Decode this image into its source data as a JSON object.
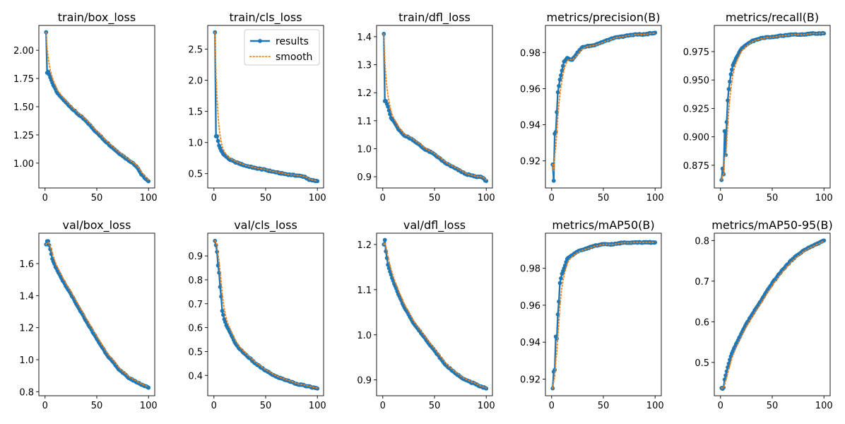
{
  "colors": {
    "results": "#1f77b4",
    "smooth": "#ff7f0e"
  },
  "legend": {
    "results_label": "results",
    "smooth_label": "smooth",
    "position": "top-right of train/cls_loss panel"
  },
  "chart_data": [
    {
      "type": "line",
      "title": "train/box_loss",
      "x_ticks": [
        0,
        50,
        100
      ],
      "y_ticks": [
        1.0,
        1.25,
        1.5,
        1.75,
        2.0
      ],
      "y_tick_labels": [
        "1.00",
        "1.25",
        "1.50",
        "1.75",
        "2.00"
      ],
      "xlim": [
        -6,
        106
      ],
      "ylim": [
        0.78,
        2.22
      ],
      "keypoints": [
        [
          1,
          2.16
        ],
        [
          2,
          1.8
        ],
        [
          3,
          1.81
        ],
        [
          5,
          1.76
        ],
        [
          8,
          1.69
        ],
        [
          12,
          1.62
        ],
        [
          15,
          1.59
        ],
        [
          20,
          1.54
        ],
        [
          30,
          1.45
        ],
        [
          40,
          1.37
        ],
        [
          50,
          1.27
        ],
        [
          60,
          1.18
        ],
        [
          70,
          1.1
        ],
        [
          80,
          1.03
        ],
        [
          85,
          1.0
        ],
        [
          90,
          0.95
        ],
        [
          93,
          0.9
        ],
        [
          100,
          0.84
        ]
      ],
      "legend": false
    },
    {
      "type": "line",
      "title": "train/cls_loss",
      "x_ticks": [
        0,
        50,
        100
      ],
      "y_ticks": [
        0.5,
        1.0,
        1.5,
        2.0,
        2.5
      ],
      "y_tick_labels": [
        "0.5",
        "1.0",
        "1.5",
        "2.0",
        "2.5"
      ],
      "xlim": [
        -6,
        106
      ],
      "ylim": [
        0.27,
        2.88
      ],
      "keypoints": [
        [
          1,
          2.77
        ],
        [
          2,
          1.1
        ],
        [
          3,
          1.1
        ],
        [
          5,
          0.95
        ],
        [
          7,
          0.87
        ],
        [
          10,
          0.8
        ],
        [
          15,
          0.73
        ],
        [
          20,
          0.69
        ],
        [
          30,
          0.63
        ],
        [
          40,
          0.59
        ],
        [
          50,
          0.56
        ],
        [
          60,
          0.52
        ],
        [
          70,
          0.49
        ],
        [
          80,
          0.47
        ],
        [
          88,
          0.45
        ],
        [
          92,
          0.4
        ],
        [
          100,
          0.38
        ]
      ],
      "legend": true
    },
    {
      "type": "line",
      "title": "train/dfl_loss",
      "x_ticks": [
        0,
        50,
        100
      ],
      "y_ticks": [
        0.9,
        1.0,
        1.1,
        1.2,
        1.3,
        1.4
      ],
      "y_tick_labels": [
        "0.9",
        "1.0",
        "1.1",
        "1.2",
        "1.3",
        "1.4"
      ],
      "xlim": [
        -6,
        106
      ],
      "ylim": [
        0.86,
        1.44
      ],
      "keypoints": [
        [
          1,
          1.41
        ],
        [
          2,
          1.17
        ],
        [
          3,
          1.17
        ],
        [
          5,
          1.15
        ],
        [
          8,
          1.11
        ],
        [
          12,
          1.09
        ],
        [
          15,
          1.07
        ],
        [
          20,
          1.05
        ],
        [
          30,
          1.03
        ],
        [
          40,
          1.0
        ],
        [
          50,
          0.98
        ],
        [
          60,
          0.95
        ],
        [
          70,
          0.93
        ],
        [
          80,
          0.91
        ],
        [
          90,
          0.9
        ],
        [
          95,
          0.9
        ],
        [
          100,
          0.885
        ]
      ],
      "legend": false
    },
    {
      "type": "line",
      "title": "metrics/precision(B)",
      "x_ticks": [
        0,
        50,
        100
      ],
      "y_ticks": [
        0.92,
        0.94,
        0.96,
        0.98
      ],
      "y_tick_labels": [
        "0.92",
        "0.94",
        "0.96",
        "0.98"
      ],
      "xlim": [
        -6,
        106
      ],
      "ylim": [
        0.905,
        0.995
      ],
      "keypoints": [
        [
          1,
          0.918
        ],
        [
          2,
          0.909
        ],
        [
          3,
          0.935
        ],
        [
          4,
          0.936
        ],
        [
          5,
          0.947
        ],
        [
          6,
          0.958
        ],
        [
          8,
          0.965
        ],
        [
          10,
          0.97
        ],
        [
          12,
          0.975
        ],
        [
          15,
          0.977
        ],
        [
          20,
          0.976
        ],
        [
          25,
          0.98
        ],
        [
          30,
          0.983
        ],
        [
          40,
          0.984
        ],
        [
          50,
          0.986
        ],
        [
          60,
          0.988
        ],
        [
          70,
          0.989
        ],
        [
          80,
          0.99
        ],
        [
          90,
          0.99
        ],
        [
          100,
          0.991
        ]
      ],
      "legend": false
    },
    {
      "type": "line",
      "title": "metrics/recall(B)",
      "x_ticks": [
        0,
        50,
        100
      ],
      "y_ticks": [
        0.875,
        0.9,
        0.925,
        0.95,
        0.975
      ],
      "y_tick_labels": [
        "0.875",
        "0.900",
        "0.925",
        "0.950",
        "0.975"
      ],
      "xlim": [
        -6,
        106
      ],
      "ylim": [
        0.855,
        0.998
      ],
      "keypoints": [
        [
          1,
          0.862
        ],
        [
          2,
          0.872
        ],
        [
          3,
          0.867
        ],
        [
          4,
          0.905
        ],
        [
          5,
          0.884
        ],
        [
          6,
          0.913
        ],
        [
          7,
          0.932
        ],
        [
          8,
          0.942
        ],
        [
          10,
          0.955
        ],
        [
          12,
          0.963
        ],
        [
          15,
          0.969
        ],
        [
          20,
          0.977
        ],
        [
          25,
          0.981
        ],
        [
          30,
          0.984
        ],
        [
          40,
          0.987
        ],
        [
          50,
          0.988
        ],
        [
          60,
          0.989
        ],
        [
          70,
          0.99
        ],
        [
          80,
          0.99
        ],
        [
          90,
          0.991
        ],
        [
          100,
          0.991
        ]
      ],
      "legend": false
    },
    {
      "type": "line",
      "title": "val/box_loss",
      "x_ticks": [
        0,
        50,
        100
      ],
      "y_ticks": [
        0.8,
        1.0,
        1.2,
        1.4,
        1.6
      ],
      "y_tick_labels": [
        "0.8",
        "1.0",
        "1.2",
        "1.4",
        "1.6"
      ],
      "xlim": [
        -6,
        106
      ],
      "ylim": [
        0.775,
        1.79
      ],
      "keypoints": [
        [
          1,
          1.72
        ],
        [
          2,
          1.74
        ],
        [
          3,
          1.74
        ],
        [
          5,
          1.69
        ],
        [
          7,
          1.63
        ],
        [
          10,
          1.58
        ],
        [
          15,
          1.52
        ],
        [
          20,
          1.46
        ],
        [
          25,
          1.41
        ],
        [
          30,
          1.35
        ],
        [
          40,
          1.24
        ],
        [
          50,
          1.13
        ],
        [
          60,
          1.03
        ],
        [
          70,
          0.95
        ],
        [
          80,
          0.89
        ],
        [
          90,
          0.855
        ],
        [
          100,
          0.825
        ]
      ],
      "legend": false
    },
    {
      "type": "line",
      "title": "val/cls_loss",
      "x_ticks": [
        0,
        50,
        100
      ],
      "y_ticks": [
        0.4,
        0.5,
        0.6,
        0.7,
        0.8,
        0.9
      ],
      "y_tick_labels": [
        "0.4",
        "0.5",
        "0.6",
        "0.7",
        "0.8",
        "0.9"
      ],
      "xlim": [
        -6,
        106
      ],
      "ylim": [
        0.315,
        0.995
      ],
      "keypoints": [
        [
          1,
          0.963
        ],
        [
          2,
          0.945
        ],
        [
          3,
          0.917
        ],
        [
          4,
          0.86
        ],
        [
          5,
          0.83
        ],
        [
          6,
          0.77
        ],
        [
          7,
          0.73
        ],
        [
          8,
          0.67
        ],
        [
          10,
          0.635
        ],
        [
          12,
          0.61
        ],
        [
          15,
          0.585
        ],
        [
          20,
          0.54
        ],
        [
          25,
          0.51
        ],
        [
          30,
          0.49
        ],
        [
          40,
          0.45
        ],
        [
          50,
          0.42
        ],
        [
          60,
          0.395
        ],
        [
          70,
          0.38
        ],
        [
          80,
          0.365
        ],
        [
          90,
          0.355
        ],
        [
          100,
          0.345
        ]
      ],
      "legend": false
    },
    {
      "type": "line",
      "title": "val/dfl_loss",
      "x_ticks": [
        0,
        50,
        100
      ],
      "y_ticks": [
        0.9,
        1.0,
        1.1,
        1.2
      ],
      "y_tick_labels": [
        "0.9",
        "1.0",
        "1.1",
        "1.2"
      ],
      "xlim": [
        -6,
        106
      ],
      "ylim": [
        0.865,
        1.225
      ],
      "keypoints": [
        [
          1,
          1.2
        ],
        [
          2,
          1.21
        ],
        [
          3,
          1.185
        ],
        [
          5,
          1.155
        ],
        [
          7,
          1.14
        ],
        [
          10,
          1.12
        ],
        [
          15,
          1.09
        ],
        [
          20,
          1.065
        ],
        [
          25,
          1.045
        ],
        [
          30,
          1.025
        ],
        [
          40,
          0.995
        ],
        [
          50,
          0.965
        ],
        [
          60,
          0.935
        ],
        [
          70,
          0.915
        ],
        [
          80,
          0.9
        ],
        [
          90,
          0.89
        ],
        [
          100,
          0.881
        ]
      ],
      "legend": false
    },
    {
      "type": "line",
      "title": "metrics/mAP50(B)",
      "x_ticks": [
        0,
        50,
        100
      ],
      "y_ticks": [
        0.92,
        0.94,
        0.96,
        0.98
      ],
      "y_tick_labels": [
        "0.92",
        "0.94",
        "0.96",
        "0.98"
      ],
      "xlim": [
        -6,
        106
      ],
      "ylim": [
        0.911,
        0.999
      ],
      "keypoints": [
        [
          1,
          0.915
        ],
        [
          2,
          0.924
        ],
        [
          3,
          0.925
        ],
        [
          4,
          0.943
        ],
        [
          5,
          0.942
        ],
        [
          6,
          0.955
        ],
        [
          7,
          0.962
        ],
        [
          8,
          0.972
        ],
        [
          10,
          0.977
        ],
        [
          12,
          0.98
        ],
        [
          15,
          0.985
        ],
        [
          20,
          0.987
        ],
        [
          25,
          0.989
        ],
        [
          30,
          0.99
        ],
        [
          40,
          0.992
        ],
        [
          50,
          0.993
        ],
        [
          60,
          0.993
        ],
        [
          70,
          0.994
        ],
        [
          80,
          0.994
        ],
        [
          90,
          0.994
        ],
        [
          100,
          0.994
        ]
      ],
      "legend": false
    },
    {
      "type": "line",
      "title": "metrics/mAP50-95(B)",
      "x_ticks": [
        0,
        50,
        100
      ],
      "y_ticks": [
        0.5,
        0.6,
        0.7,
        0.8
      ],
      "y_tick_labels": [
        "0.5",
        "0.6",
        "0.7",
        "0.8"
      ],
      "xlim": [
        -6,
        106
      ],
      "ylim": [
        0.418,
        0.818
      ],
      "keypoints": [
        [
          1,
          0.437
        ],
        [
          2,
          0.435
        ],
        [
          3,
          0.438
        ],
        [
          4,
          0.458
        ],
        [
          5,
          0.468
        ],
        [
          7,
          0.488
        ],
        [
          10,
          0.515
        ],
        [
          15,
          0.545
        ],
        [
          20,
          0.57
        ],
        [
          25,
          0.595
        ],
        [
          30,
          0.615
        ],
        [
          40,
          0.655
        ],
        [
          50,
          0.695
        ],
        [
          60,
          0.728
        ],
        [
          70,
          0.755
        ],
        [
          80,
          0.775
        ],
        [
          90,
          0.788
        ],
        [
          100,
          0.8
        ]
      ],
      "legend": false
    }
  ]
}
